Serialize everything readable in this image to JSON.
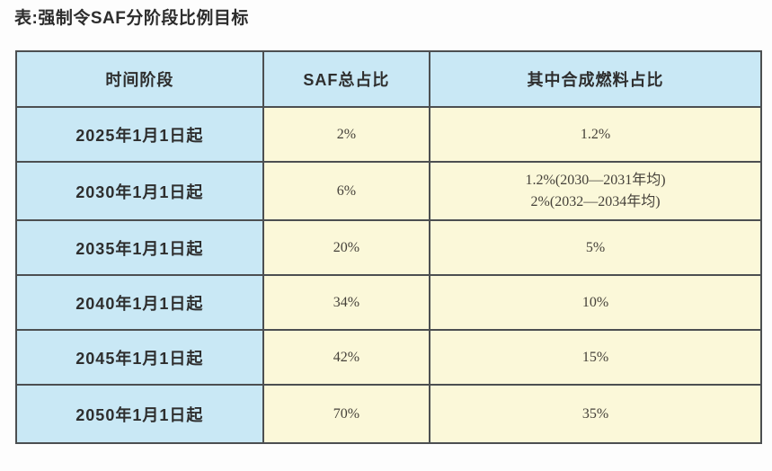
{
  "title": "表:强制令SAF分阶段比例目标",
  "colors": {
    "header_blue": "#c9e8f5",
    "value_yellow": "#fbf8d9",
    "border_gray": "#4c4f51",
    "text_dark": "#2e2e2e",
    "value_text": "#45413a"
  },
  "table": {
    "headers": [
      "时间阶段",
      "SAF总占比",
      "其中合成燃料占比"
    ],
    "rows": [
      {
        "period": "2025年1月1日起",
        "saf": "2%",
        "synthetic": "1.2%",
        "synthetic2": ""
      },
      {
        "period": "2030年1月1日起",
        "saf": "6%",
        "synthetic": "1.2%(2030—2031年均)",
        "synthetic2": "2%(2032—2034年均)"
      },
      {
        "period": "2035年1月1日起",
        "saf": "20%",
        "synthetic": "5%",
        "synthetic2": ""
      },
      {
        "period": "2040年1月1日起",
        "saf": "34%",
        "synthetic": "10%",
        "synthetic2": ""
      },
      {
        "period": "2045年1月1日起",
        "saf": "42%",
        "synthetic": "15%",
        "synthetic2": ""
      },
      {
        "period": "2050年1月1日起",
        "saf": "70%",
        "synthetic": "35%",
        "synthetic2": ""
      }
    ]
  }
}
